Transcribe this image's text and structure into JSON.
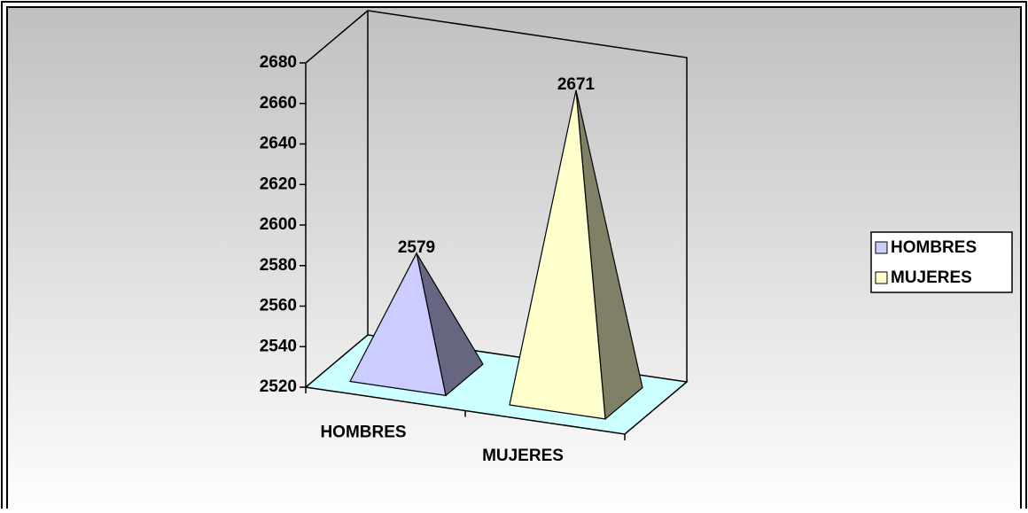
{
  "chart_data": {
    "type": "pyramid",
    "categories": [
      "HOMBRES",
      "MUJERES"
    ],
    "values": [
      2579,
      2671
    ],
    "colors": [
      "#ccccff",
      "#ffffcc"
    ],
    "ylim": [
      2520,
      2680
    ],
    "yticks": [
      2520,
      2540,
      2560,
      2580,
      2600,
      2620,
      2640,
      2660,
      2680
    ],
    "legend": "right"
  }
}
